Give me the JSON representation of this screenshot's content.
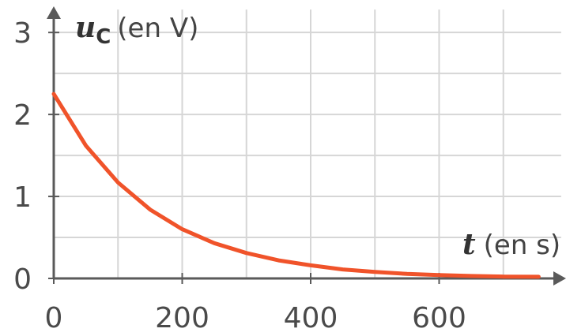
{
  "chart_data": {
    "type": "line",
    "x_axis": {
      "symbol": "t",
      "unit_label": "(en s)",
      "ticks": [
        0,
        200,
        400,
        600
      ],
      "range": [
        0,
        800
      ]
    },
    "y_axis": {
      "symbol": "u",
      "subscript": "C",
      "unit_label": "(en V)",
      "ticks": [
        0,
        1,
        2,
        3
      ],
      "range": [
        0,
        3.3
      ]
    },
    "grid": true,
    "series": [
      {
        "color": "#f0532a",
        "points": [
          [
            0,
            2.25
          ],
          [
            50,
            1.62
          ],
          [
            100,
            1.17
          ],
          [
            150,
            0.84
          ],
          [
            200,
            0.6
          ],
          [
            250,
            0.43
          ],
          [
            300,
            0.31
          ],
          [
            350,
            0.22
          ],
          [
            400,
            0.16
          ],
          [
            450,
            0.11
          ],
          [
            500,
            0.08
          ],
          [
            550,
            0.055
          ],
          [
            600,
            0.04
          ],
          [
            650,
            0.03
          ],
          [
            700,
            0.022
          ],
          [
            755,
            0.02
          ]
        ]
      }
    ]
  }
}
